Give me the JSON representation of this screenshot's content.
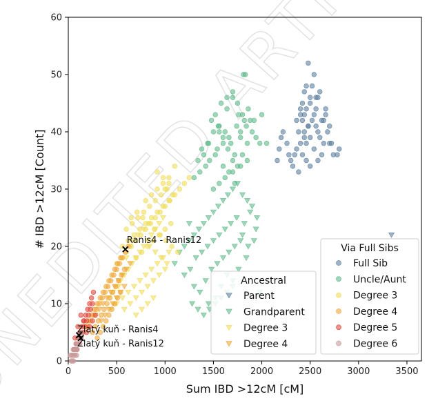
{
  "watermark": "UNEDITED ARTICLE PREVIEW",
  "chart_data": {
    "type": "scatter",
    "xlabel": "Sum IBD >12cM [cM]",
    "ylabel": "# IBD >12cM [Count]",
    "xlim": [
      0,
      3650
    ],
    "ylim": [
      0,
      60
    ],
    "xticks": [
      0,
      500,
      1000,
      1500,
      2000,
      2500,
      3000,
      3500
    ],
    "yticks": [
      0,
      10,
      20,
      30,
      40,
      50,
      60
    ],
    "grid": false,
    "colors": {
      "full_sib": "#5b7f9e",
      "parent": "#5b7f9e",
      "uncle_aunt": "#5fb98a",
      "grandparent": "#5fb98a",
      "degree3": "#f0dc5a",
      "degree4": "#f0a83c",
      "degree5": "#e0483c",
      "degree6": "#c89a9a"
    },
    "legends": [
      {
        "title": "Ancestral",
        "placement": "bottom-center",
        "entries": [
          {
            "label": "Parent",
            "marker": "triangle-down",
            "color_key": "parent"
          },
          {
            "label": "Grandparent",
            "marker": "triangle-down",
            "color_key": "grandparent"
          },
          {
            "label": "Degree 3",
            "marker": "triangle-down",
            "color_key": "degree3"
          },
          {
            "label": "Degree 4",
            "marker": "triangle-down",
            "color_key": "degree4"
          }
        ]
      },
      {
        "title": "Via Full Sibs",
        "placement": "bottom-right",
        "entries": [
          {
            "label": "Full Sib",
            "marker": "circle",
            "color_key": "full_sib"
          },
          {
            "label": "Uncle/Aunt",
            "marker": "circle",
            "color_key": "uncle_aunt"
          },
          {
            "label": "Degree 3",
            "marker": "circle",
            "color_key": "degree3"
          },
          {
            "label": "Degree 4",
            "marker": "circle",
            "color_key": "degree4"
          },
          {
            "label": "Degree 5",
            "marker": "circle",
            "color_key": "degree5"
          },
          {
            "label": "Degree 6",
            "marker": "circle",
            "color_key": "degree6"
          }
        ]
      }
    ],
    "series": [
      {
        "key": "parent",
        "marker": "triangle-down",
        "color_key": "parent",
        "x": [
          3340
        ],
        "y": [
          22
        ]
      },
      {
        "key": "full_sib",
        "marker": "circle",
        "color_key": "full_sib",
        "x": [
          2380,
          2420,
          2460,
          2500,
          2540,
          2560,
          2600,
          2640,
          2360,
          2400,
          2440,
          2480,
          2520,
          2580,
          2620,
          2660,
          2700,
          2340,
          2300,
          2260,
          2220,
          2200,
          2180,
          2160,
          2420,
          2500,
          2560,
          2640,
          2720,
          2780,
          2800,
          2460,
          2520,
          2600,
          2680,
          2740,
          2440,
          2480,
          2540,
          2580,
          2380,
          2320,
          2280,
          2420,
          2460,
          2500,
          2540,
          2440,
          2400,
          2360,
          2620,
          2580,
          2560,
          2700,
          2660,
          2460,
          2500,
          2400,
          2480,
          2440
        ],
        "y": [
          40,
          42,
          44,
          45,
          43,
          41,
          39,
          38,
          37,
          38,
          39,
          41,
          42,
          40,
          42,
          44,
          41,
          36,
          35,
          38,
          40,
          39,
          37,
          35,
          45,
          46,
          44,
          42,
          38,
          36,
          37,
          48,
          48,
          47,
          40,
          36,
          47,
          52,
          50,
          46,
          33,
          34,
          36,
          36,
          35,
          34,
          37,
          40,
          43,
          42,
          36,
          35,
          46,
          38,
          43,
          38,
          39,
          44,
          41,
          43
        ]
      },
      {
        "key": "uncle_aunt",
        "marker": "circle",
        "color_key": "uncle_aunt",
        "x": [
          1400,
          1450,
          1500,
          1550,
          1600,
          1650,
          1700,
          1750,
          1800,
          1850,
          1900,
          1480,
          1520,
          1560,
          1620,
          1680,
          1720,
          1780,
          1840,
          1880,
          1940,
          1580,
          1640,
          1700,
          1760,
          1820,
          1360,
          1420,
          1460,
          1540,
          1600,
          1660,
          1740,
          1800,
          1860,
          1920,
          1980,
          1500,
          1560,
          1620,
          1700,
          1780,
          1850,
          1750,
          1810,
          1830,
          1700,
          1640,
          1560,
          1380,
          1440,
          1300,
          1340,
          1520,
          1600,
          1660,
          1720,
          1780,
          2000,
          2050
        ],
        "y": [
          36,
          38,
          40,
          41,
          39,
          37,
          35,
          34,
          36,
          38,
          40,
          42,
          43,
          41,
          40,
          38,
          36,
          39,
          41,
          42,
          39,
          45,
          44,
          46,
          43,
          42,
          33,
          34,
          35,
          37,
          38,
          39,
          41,
          43,
          44,
          42,
          38,
          30,
          31,
          32,
          33,
          34,
          35,
          45,
          50,
          50,
          47,
          46,
          40,
          37,
          38,
          32,
          35,
          36,
          34,
          33,
          31,
          40,
          43,
          38
        ]
      },
      {
        "key": "grandparent",
        "marker": "triangle-down",
        "color_key": "grandparent",
        "x": [
          1100,
          1150,
          1200,
          1250,
          1300,
          1350,
          1400,
          1450,
          1500,
          1550,
          1600,
          1650,
          1700,
          1750,
          1800,
          1850,
          1900,
          1950,
          1200,
          1260,
          1320,
          1380,
          1440,
          1500,
          1560,
          1620,
          1680,
          1740,
          1800,
          1860,
          1920,
          1300,
          1360,
          1420,
          1480,
          1540,
          1600,
          1660,
          1720,
          1780,
          1840,
          1450,
          1520,
          1580,
          1640,
          1700,
          1760,
          1820,
          1880,
          1940,
          1980,
          1280,
          1340,
          1400,
          1460,
          1520,
          1580,
          1640,
          1700,
          1250
        ],
        "y": [
          17,
          19,
          20,
          21,
          22,
          23,
          24,
          25,
          26,
          27,
          28,
          29,
          30,
          31,
          29,
          28,
          27,
          25,
          15,
          16,
          18,
          19,
          20,
          21,
          22,
          23,
          24,
          25,
          22,
          20,
          21,
          13,
          12,
          14,
          16,
          17,
          18,
          19,
          20,
          21,
          18,
          10,
          11,
          13,
          15,
          14,
          16,
          24,
          26,
          23,
          12,
          10,
          9,
          8,
          9,
          10,
          11,
          12,
          13,
          24
        ]
      },
      {
        "key": "degree3_sib",
        "marker": "circle",
        "color_key": "degree3",
        "x": [
          500,
          550,
          600,
          650,
          700,
          750,
          800,
          850,
          900,
          950,
          1000,
          1050,
          1100,
          1150,
          1200,
          1250,
          560,
          620,
          680,
          740,
          800,
          860,
          920,
          980,
          1040,
          600,
          660,
          720,
          780,
          840,
          900,
          960,
          1020,
          700,
          760,
          820,
          880,
          940,
          1000,
          1060,
          800,
          860,
          920,
          980,
          1040,
          1100,
          650,
          710,
          770,
          830,
          890,
          950,
          1010,
          1070,
          1130,
          920,
          980,
          1040,
          1000,
          1080
        ],
        "y": [
          17,
          18,
          19,
          20,
          21,
          22,
          23,
          24,
          25,
          26,
          27,
          28,
          29,
          30,
          31,
          32,
          20,
          21,
          22,
          23,
          24,
          25,
          26,
          27,
          28,
          23,
          24,
          25,
          26,
          27,
          28,
          29,
          30,
          18,
          19,
          20,
          21,
          22,
          23,
          24,
          28,
          29,
          30,
          31,
          32,
          34,
          25,
          26,
          25,
          24,
          23,
          22,
          21,
          20,
          19,
          33,
          32,
          31,
          30,
          29
        ]
      },
      {
        "key": "degree3_anc",
        "marker": "triangle-down",
        "color_key": "degree3",
        "x": [
          420,
          460,
          500,
          540,
          580,
          620,
          660,
          700,
          740,
          780,
          820,
          860,
          900,
          940,
          980,
          500,
          560,
          620,
          680,
          740,
          800,
          860,
          920,
          980,
          1040,
          580,
          640,
          700,
          760,
          820,
          880,
          940,
          1000,
          660,
          720,
          780,
          840,
          900,
          960,
          1020,
          700,
          760,
          820,
          880,
          440,
          480,
          520,
          560,
          600,
          640
        ],
        "y": [
          11,
          12,
          13,
          14,
          15,
          16,
          17,
          18,
          19,
          20,
          21,
          22,
          23,
          24,
          25,
          10,
          11,
          12,
          13,
          14,
          15,
          16,
          17,
          18,
          19,
          9,
          10,
          11,
          12,
          13,
          14,
          15,
          16,
          21,
          22,
          23,
          20,
          19,
          18,
          17,
          8,
          9,
          10,
          11,
          9,
          10,
          13,
          15,
          18,
          20
        ]
      },
      {
        "key": "degree4_sib",
        "marker": "circle",
        "color_key": "degree4",
        "x": [
          200,
          230,
          260,
          290,
          320,
          350,
          380,
          410,
          440,
          470,
          500,
          530,
          560,
          590,
          620,
          250,
          280,
          310,
          340,
          370,
          400,
          430,
          460,
          490,
          520,
          550,
          580,
          300,
          330,
          360,
          390,
          420,
          450,
          480,
          510,
          540,
          150,
          180,
          210,
          240,
          270,
          300,
          330,
          360,
          390,
          420,
          450,
          480,
          510,
          540
        ],
        "y": [
          6,
          7,
          8,
          9,
          10,
          11,
          12,
          13,
          14,
          15,
          16,
          17,
          18,
          19,
          20,
          5,
          6,
          7,
          8,
          9,
          10,
          11,
          12,
          13,
          14,
          15,
          16,
          4,
          5,
          6,
          7,
          8,
          9,
          10,
          11,
          12,
          5,
          6,
          7,
          8,
          9,
          10,
          11,
          12,
          13,
          14,
          15,
          16,
          17,
          18
        ]
      },
      {
        "key": "degree4_anc",
        "marker": "triangle-down",
        "color_key": "degree4",
        "x": [
          280,
          320,
          360,
          400,
          440,
          480,
          520,
          560,
          600,
          640,
          340,
          380,
          420,
          460,
          500,
          540,
          580
        ],
        "y": [
          8,
          9,
          10,
          11,
          12,
          13,
          14,
          15,
          16,
          17,
          7,
          8,
          9,
          10,
          11,
          12,
          13
        ]
      },
      {
        "key": "degree5_sib",
        "marker": "circle",
        "color_key": "degree5",
        "x": [
          60,
          80,
          100,
          120,
          140,
          160,
          180,
          200,
          220,
          240,
          260,
          90,
          110,
          130,
          150,
          170,
          190,
          210,
          230,
          250,
          70,
          100,
          130,
          160,
          190,
          220,
          250,
          280
        ],
        "y": [
          2,
          3,
          4,
          5,
          6,
          7,
          8,
          9,
          10,
          11,
          12,
          2,
          3,
          4,
          5,
          6,
          7,
          8,
          9,
          10,
          4,
          6,
          8,
          7,
          5,
          6,
          7,
          8
        ]
      },
      {
        "key": "degree6_sib",
        "marker": "circle",
        "color_key": "degree6",
        "x": [
          20,
          35,
          50,
          65,
          80,
          95,
          110,
          125,
          140,
          30,
          45,
          60,
          75,
          90,
          105,
          120,
          40,
          55,
          70,
          85
        ],
        "y": [
          1,
          1,
          2,
          2,
          3,
          3,
          4,
          4,
          5,
          0,
          1,
          1,
          2,
          2,
          3,
          3,
          0,
          0,
          1,
          1
        ]
      }
    ],
    "annotations": [
      {
        "label": "Ranis4 - Ranis12",
        "x": 590,
        "y": 19.5
      },
      {
        "label": "Zlatý kuň - Ranis4",
        "x": 110,
        "y": 4.5
      },
      {
        "label": "Zlatý kuň - Ranis12",
        "x": 130,
        "y": 4.0
      }
    ]
  }
}
